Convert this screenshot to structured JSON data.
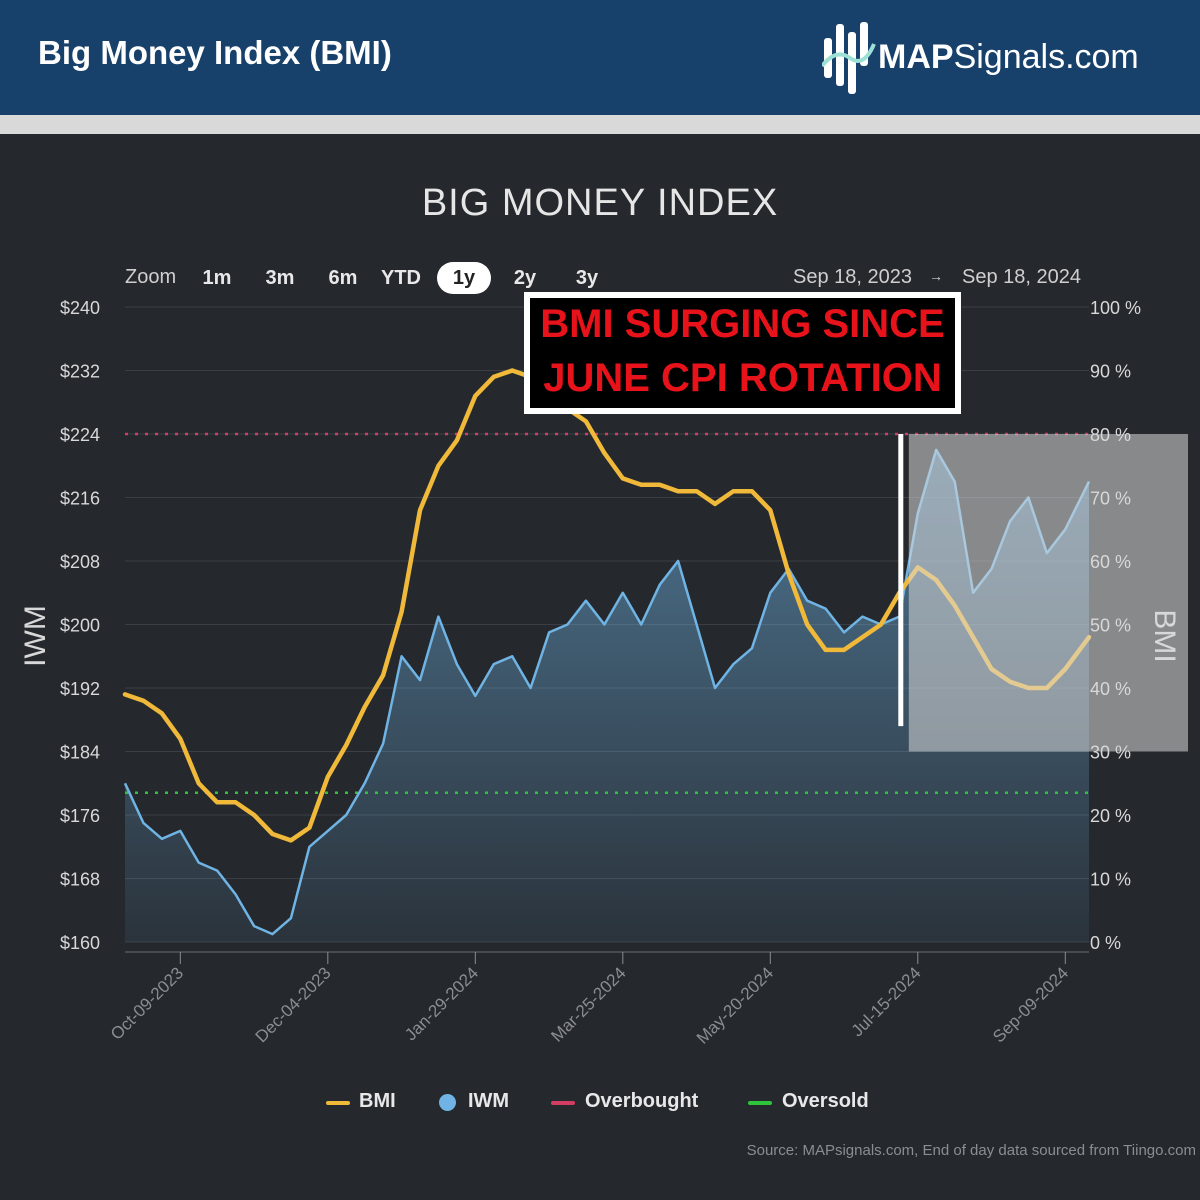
{
  "header": {
    "title": "Big Money Index (BMI)",
    "brand_strong": "MAP",
    "brand_rest": "Signals.com",
    "brand_icon": "map-signals-logo"
  },
  "toolbar": {
    "zoom_label": "Zoom",
    "zoom_options": [
      "1m",
      "3m",
      "6m",
      "YTD",
      "1y",
      "2y",
      "3y"
    ],
    "selected": "1y",
    "range_from": "Sep 18, 2023",
    "range_arrow": "→",
    "range_to": "Sep 18, 2024"
  },
  "callout": {
    "line1": "BMI SURGING SINCE",
    "line2": "JUNE CPI ROTATION"
  },
  "legend": {
    "bmi": "BMI",
    "iwm": "IWM",
    "overbought": "Overbought",
    "oversold": "Oversold"
  },
  "source": "Source: MAPsignals.com, End of day data sourced from Tiingo.com",
  "chart_data": {
    "type": "line",
    "title": "BIG MONEY INDEX",
    "ylabel_left": "IWM",
    "ylabel_right": "BMI",
    "y_left_ticks": [
      "$240",
      "$232",
      "$224",
      "$216",
      "$208",
      "$200",
      "$192",
      "$184",
      "$176",
      "$168",
      "$160"
    ],
    "y_right_ticks": [
      "100 %",
      "90 %",
      "80 %",
      "70 %",
      "60 %",
      "50 %",
      "40 %",
      "30 %",
      "20 %",
      "10 %",
      "0 %"
    ],
    "ylim_left": [
      160,
      240
    ],
    "ylim_right": [
      0,
      100
    ],
    "xlim": [
      "2023-09-18",
      "2024-09-18"
    ],
    "x_ticks": [
      "Oct-09-2023",
      "Dec-04-2023",
      "Jan-29-2024",
      "Mar-25-2024",
      "May-20-2024",
      "Jul-15-2024",
      "Sep-09-2024"
    ],
    "overbought": 80,
    "oversold": 23.5,
    "colors": {
      "bmi": "#f0b93a",
      "iwm": "#6fb4e4",
      "overbought": "#d23d62",
      "oversold": "#2ec43c",
      "highlight": "#d9d9d9"
    },
    "highlight_range": {
      "x": [
        "2024-07-15",
        "2024-09-18"
      ],
      "y": [
        30,
        80
      ]
    },
    "series": [
      {
        "name": "BMI",
        "axis": "right",
        "points": [
          [
            "2023-09-18",
            39.0
          ],
          [
            "2023-09-25",
            38.0
          ],
          [
            "2023-10-02",
            36.0
          ],
          [
            "2023-10-09",
            32.0
          ],
          [
            "2023-10-16",
            25.0
          ],
          [
            "2023-10-23",
            22.0
          ],
          [
            "2023-10-30",
            22.0
          ],
          [
            "2023-11-06",
            20.0
          ],
          [
            "2023-11-13",
            17.0
          ],
          [
            "2023-11-20",
            16.0
          ],
          [
            "2023-11-27",
            18.0
          ],
          [
            "2023-12-04",
            26.0
          ],
          [
            "2023-12-11",
            31.0
          ],
          [
            "2023-12-18",
            37.0
          ],
          [
            "2023-12-25",
            42.0
          ],
          [
            "2024-01-01",
            52.0
          ],
          [
            "2024-01-08",
            68.0
          ],
          [
            "2024-01-15",
            75.0
          ],
          [
            "2024-01-22",
            79.0
          ],
          [
            "2024-01-29",
            86.0
          ],
          [
            "2024-02-05",
            89.0
          ],
          [
            "2024-02-12",
            90.0
          ],
          [
            "2024-02-19",
            89.0
          ],
          [
            "2024-02-26",
            86.0
          ],
          [
            "2024-03-04",
            84.0
          ],
          [
            "2024-03-11",
            82.0
          ],
          [
            "2024-03-18",
            77.0
          ],
          [
            "2024-03-25",
            73.0
          ],
          [
            "2024-04-01",
            72.0
          ],
          [
            "2024-04-08",
            72.0
          ],
          [
            "2024-04-15",
            71.0
          ],
          [
            "2024-04-22",
            71.0
          ],
          [
            "2024-04-29",
            69.0
          ],
          [
            "2024-05-06",
            71.0
          ],
          [
            "2024-05-13",
            71.0
          ],
          [
            "2024-05-20",
            68.0
          ],
          [
            "2024-05-27",
            58.0
          ],
          [
            "2024-06-03",
            50.0
          ],
          [
            "2024-06-10",
            46.0
          ],
          [
            "2024-06-17",
            46.0
          ],
          [
            "2024-06-24",
            48.0
          ],
          [
            "2024-07-01",
            50.0
          ],
          [
            "2024-07-08",
            55.0
          ],
          [
            "2024-07-15",
            59.0
          ],
          [
            "2024-07-22",
            57.0
          ],
          [
            "2024-07-29",
            53.0
          ],
          [
            "2024-08-05",
            48.0
          ],
          [
            "2024-08-12",
            43.0
          ],
          [
            "2024-08-19",
            41.0
          ],
          [
            "2024-08-26",
            40.0
          ],
          [
            "2024-09-02",
            40.0
          ],
          [
            "2024-09-09",
            43.0
          ],
          [
            "2024-09-18",
            48.0
          ]
        ]
      },
      {
        "name": "IWM",
        "axis": "left",
        "points": [
          [
            "2023-09-18",
            180.0
          ],
          [
            "2023-09-25",
            175.0
          ],
          [
            "2023-10-02",
            173.0
          ],
          [
            "2023-10-09",
            174.0
          ],
          [
            "2023-10-16",
            170.0
          ],
          [
            "2023-10-23",
            169.0
          ],
          [
            "2023-10-30",
            166.0
          ],
          [
            "2023-11-06",
            162.0
          ],
          [
            "2023-11-13",
            161.0
          ],
          [
            "2023-11-20",
            163.0
          ],
          [
            "2023-11-27",
            172.0
          ],
          [
            "2023-12-04",
            174.0
          ],
          [
            "2023-12-11",
            176.0
          ],
          [
            "2023-12-18",
            180.0
          ],
          [
            "2023-12-25",
            185.0
          ],
          [
            "2024-01-01",
            196.0
          ],
          [
            "2024-01-08",
            193.0
          ],
          [
            "2024-01-15",
            201.0
          ],
          [
            "2024-01-22",
            195.0
          ],
          [
            "2024-01-29",
            191.0
          ],
          [
            "2024-02-05",
            195.0
          ],
          [
            "2024-02-12",
            196.0
          ],
          [
            "2024-02-19",
            192.0
          ],
          [
            "2024-02-26",
            199.0
          ],
          [
            "2024-03-04",
            200.0
          ],
          [
            "2024-03-11",
            203.0
          ],
          [
            "2024-03-18",
            200.0
          ],
          [
            "2024-03-25",
            204.0
          ],
          [
            "2024-04-01",
            200.0
          ],
          [
            "2024-04-08",
            205.0
          ],
          [
            "2024-04-15",
            208.0
          ],
          [
            "2024-04-22",
            200.0
          ],
          [
            "2024-04-29",
            192.0
          ],
          [
            "2024-05-06",
            195.0
          ],
          [
            "2024-05-13",
            197.0
          ],
          [
            "2024-05-20",
            204.0
          ],
          [
            "2024-05-27",
            207.0
          ],
          [
            "2024-06-03",
            203.0
          ],
          [
            "2024-06-10",
            202.0
          ],
          [
            "2024-06-17",
            199.0
          ],
          [
            "2024-06-24",
            201.0
          ],
          [
            "2024-07-01",
            200.0
          ],
          [
            "2024-07-08",
            201.0
          ],
          [
            "2024-07-15",
            214.0
          ],
          [
            "2024-07-22",
            222.0
          ],
          [
            "2024-07-29",
            218.0
          ],
          [
            "2024-08-05",
            204.0
          ],
          [
            "2024-08-12",
            207.0
          ],
          [
            "2024-08-19",
            213.0
          ],
          [
            "2024-08-26",
            216.0
          ],
          [
            "2024-09-02",
            209.0
          ],
          [
            "2024-09-09",
            212.0
          ],
          [
            "2024-09-18",
            218.0
          ]
        ]
      }
    ]
  }
}
